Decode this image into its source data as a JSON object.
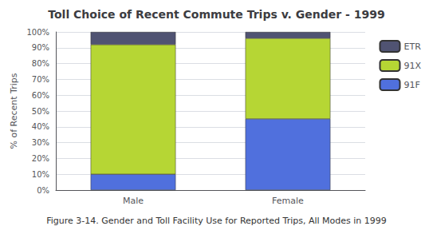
{
  "chart_data": {
    "type": "bar",
    "title": "Toll Choice of Recent Commute Trips v. Gender - 1999",
    "caption": "Figure 3-14. Gender and Toll Facility Use for Reported Trips, All Modes in 1999",
    "ylabel": "% of Recent Trips",
    "categories": [
      "Male",
      "Female"
    ],
    "series": [
      {
        "name": "91F",
        "values": [
          10,
          45
        ]
      },
      {
        "name": "91X",
        "values": [
          82,
          51
        ]
      },
      {
        "name": "ETR",
        "values": [
          8,
          4
        ]
      }
    ],
    "stacked": true,
    "ylim": [
      0,
      100
    ],
    "yticks": [
      {
        "value": 0,
        "label": "0%"
      },
      {
        "value": 10,
        "label": "10%"
      },
      {
        "value": 20,
        "label": "20%"
      },
      {
        "value": 30,
        "label": "30%"
      },
      {
        "value": 40,
        "label": "40%"
      },
      {
        "value": 50,
        "label": "50%"
      },
      {
        "value": 60,
        "label": "60%"
      },
      {
        "value": 70,
        "label": "70%"
      },
      {
        "value": 80,
        "label": "80%"
      },
      {
        "value": 90,
        "label": "90%"
      },
      {
        "value": 100,
        "label": "100%"
      }
    ],
    "grid": true,
    "legend": "right"
  }
}
